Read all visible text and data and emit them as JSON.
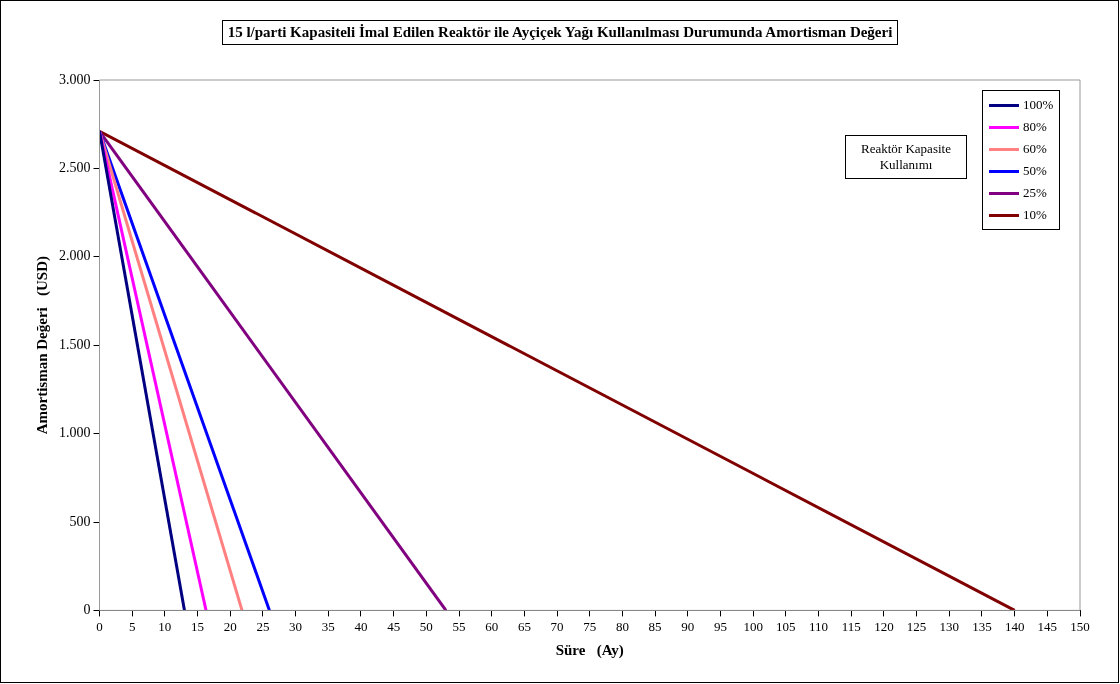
{
  "chart_data": {
    "type": "line",
    "title": "15 l/parti Kapasiteli İmal Edilen Reaktör ile Ayçiçek Yağı Kullanılması Durumunda Amortisman Değeri",
    "xlabel": "Süre   (Ay)",
    "ylabel": "Amortisman Değeri   (USD)",
    "legend_title": "Reaktör Kapasite Kullanımı",
    "legend": "top right",
    "grid": false,
    "marker": "none",
    "line_style": "solid",
    "xlim": [
      0,
      150
    ],
    "xticks": [
      0,
      5,
      10,
      15,
      20,
      25,
      30,
      35,
      40,
      45,
      50,
      55,
      60,
      65,
      70,
      75,
      80,
      85,
      90,
      95,
      100,
      105,
      110,
      115,
      120,
      125,
      130,
      135,
      140,
      145,
      150
    ],
    "ylim": [
      0,
      3000
    ],
    "yticks": [
      0,
      500,
      {
        "value": 1000,
        "label": "1.000"
      },
      {
        "value": 1500,
        "label": "1.500"
      },
      {
        "value": 2000,
        "label": "2.000"
      },
      {
        "value": 2500,
        "label": "2.500"
      },
      {
        "value": 3000,
        "label": "3.000"
      }
    ],
    "series": [
      {
        "name": "100%",
        "color": "#000080",
        "x": [
          0,
          13
        ],
        "values": [
          2710,
          0
        ]
      },
      {
        "name": "80%",
        "color": "#ff00ff",
        "x": [
          0,
          16.3
        ],
        "values": [
          2710,
          0
        ]
      },
      {
        "name": "60%",
        "color": "#ff8080",
        "x": [
          0,
          21.8
        ],
        "values": [
          2710,
          0
        ]
      },
      {
        "name": "50%",
        "color": "#0000ff",
        "x": [
          0,
          26
        ],
        "values": [
          2710,
          0
        ]
      },
      {
        "name": "25%",
        "color": "#800080",
        "x": [
          0,
          53
        ],
        "values": [
          2710,
          0
        ]
      },
      {
        "name": "10%",
        "color": "#800000",
        "x": [
          0,
          140
        ],
        "values": [
          2710,
          0
        ]
      }
    ]
  }
}
